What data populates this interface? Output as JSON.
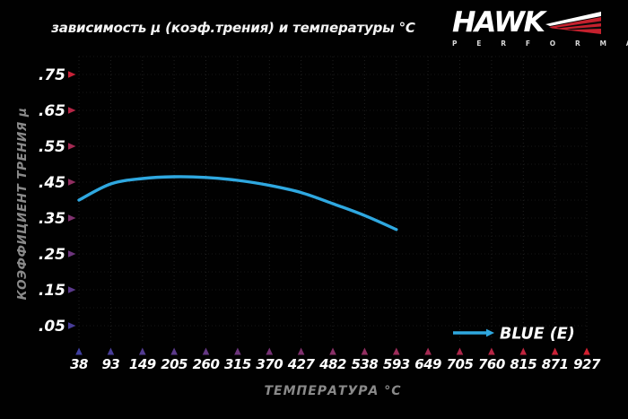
{
  "title": "зависимость μ (коэф.трения) и температуры °C",
  "logo": {
    "brand": "HAWK",
    "subbrand": "P E R F O R M A N C E"
  },
  "axes": {
    "x_title": "ТЕМПЕРАТУРА °C",
    "y_title": "КОЭФФИЦИЕНТ ТРЕНИЯ μ"
  },
  "legend": {
    "label": "BLUE (E)"
  },
  "colors": {
    "background": "#010101",
    "curve_blue": "#2fa8e0",
    "axis_red": "#d32030",
    "axis_blue": "#3f3f9f",
    "tick_text": "#ffffff",
    "axis_title_gray": "#8a8a8a",
    "grid_v": "#202020",
    "grid_h": "#171717",
    "logo_red": "#c5212e",
    "logo_white": "#ffffff"
  },
  "chart_data": {
    "type": "line",
    "title": "зависимость μ (коэф.трения) и температуры °C",
    "xlabel": "ТЕМПЕРАТУРА °C",
    "ylabel": "КОЭФФИЦИЕНТ ТРЕНИЯ μ",
    "x_ticks": [
      38,
      93,
      149,
      205,
      260,
      315,
      370,
      427,
      482,
      538,
      593,
      649,
      705,
      760,
      815,
      871,
      927
    ],
    "y_ticks": [
      0.05,
      0.15,
      0.25,
      0.35,
      0.45,
      0.55,
      0.65,
      0.75
    ],
    "ylim": [
      0,
      0.8
    ],
    "grid": true,
    "legend_position": "bottom-right",
    "series": [
      {
        "name": "BLUE (E)",
        "color": "#2fa8e0",
        "points": [
          [
            38,
            0.4
          ],
          [
            93,
            0.445
          ],
          [
            149,
            0.46
          ],
          [
            205,
            0.465
          ],
          [
            260,
            0.463
          ],
          [
            315,
            0.455
          ],
          [
            370,
            0.441
          ],
          [
            427,
            0.421
          ],
          [
            482,
            0.39
          ],
          [
            538,
            0.357
          ],
          [
            593,
            0.318
          ]
        ]
      }
    ]
  }
}
